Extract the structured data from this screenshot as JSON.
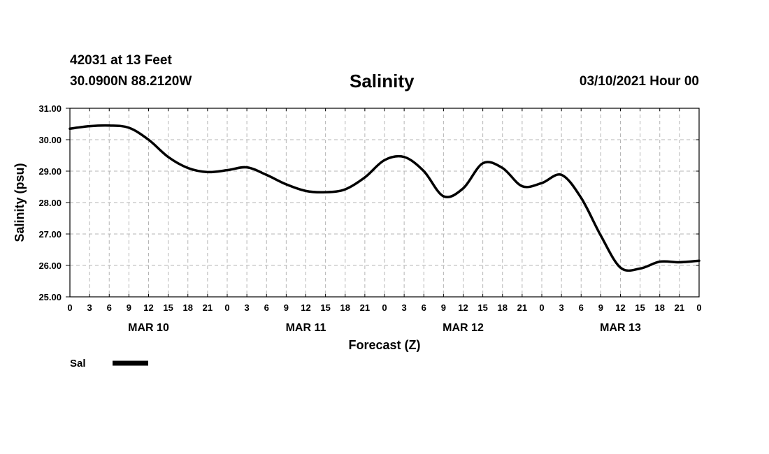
{
  "header": {
    "station": "42031 at 13 Feet",
    "coords": "30.0900N 88.2120W",
    "title": "Salinity",
    "run_time": "03/10/2021 Hour 00"
  },
  "chart_data": {
    "type": "line",
    "title": "Salinity",
    "xlabel": "Forecast (Z)",
    "ylabel": "Salinity (psu)",
    "ylim": [
      25.0,
      31.0
    ],
    "xlim": [
      0,
      96
    ],
    "y_ticks": [
      "25.00",
      "26.00",
      "27.00",
      "28.00",
      "29.00",
      "30.00",
      "31.00"
    ],
    "x_tick_labels": [
      "0",
      "3",
      "6",
      "9",
      "12",
      "15",
      "18",
      "21",
      "0",
      "3",
      "6",
      "9",
      "12",
      "15",
      "18",
      "21",
      "0",
      "3",
      "6",
      "9",
      "12",
      "15",
      "18",
      "21",
      "0",
      "3",
      "6",
      "9",
      "12",
      "15",
      "18",
      "21",
      "0"
    ],
    "day_labels": [
      {
        "label": "MAR 10",
        "hour": 12
      },
      {
        "label": "MAR 11",
        "hour": 36
      },
      {
        "label": "MAR 12",
        "hour": 60
      },
      {
        "label": "MAR 13",
        "hour": 84
      }
    ],
    "grid": true,
    "legend": [
      {
        "name": "Sal",
        "color": "#000000"
      }
    ],
    "series": [
      {
        "name": "Sal",
        "color": "#000000",
        "x": [
          0,
          3,
          6,
          9,
          12,
          15,
          18,
          21,
          24,
          27,
          30,
          33,
          36,
          39,
          42,
          45,
          48,
          51,
          54,
          57,
          60,
          63,
          66,
          69,
          72,
          75,
          78,
          81,
          84,
          87,
          90,
          93,
          96
        ],
        "values": [
          30.35,
          30.43,
          30.45,
          30.38,
          30.0,
          29.45,
          29.1,
          28.97,
          29.03,
          29.12,
          28.88,
          28.58,
          28.37,
          28.33,
          28.42,
          28.8,
          29.35,
          29.45,
          29.0,
          28.2,
          28.45,
          29.25,
          29.1,
          28.52,
          28.62,
          28.88,
          28.15,
          26.95,
          25.93,
          25.9,
          26.12,
          26.1,
          26.15
        ]
      }
    ]
  }
}
